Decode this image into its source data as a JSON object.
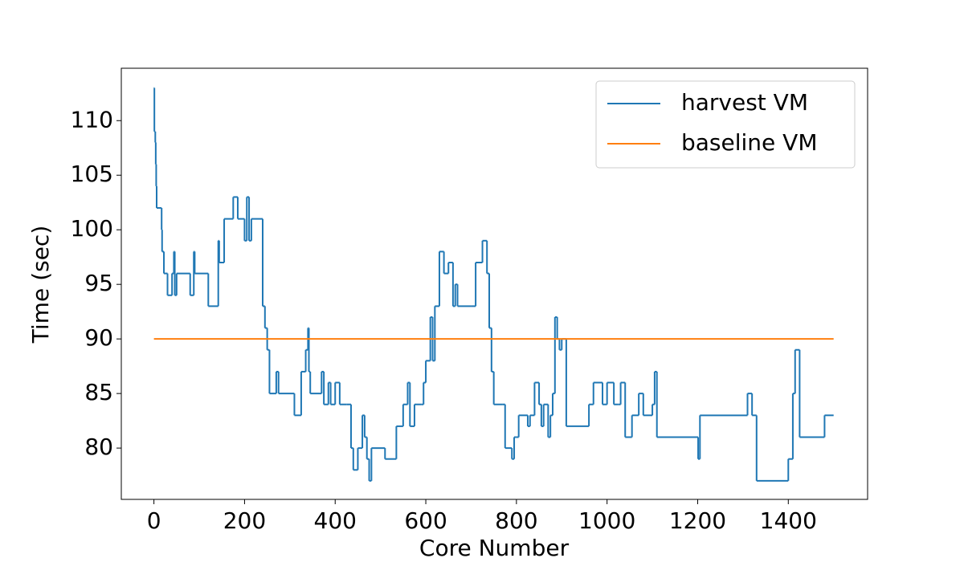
{
  "chart_data": {
    "type": "step",
    "xlabel": "Core Number",
    "ylabel": "Time (sec)",
    "xlim": [
      -72,
      1575
    ],
    "ylim": [
      75.3,
      114.8
    ],
    "xticks": [
      0,
      200,
      400,
      600,
      800,
      1000,
      1200,
      1400
    ],
    "yticks": [
      80,
      85,
      90,
      95,
      100,
      105,
      110
    ],
    "legend": "upper right",
    "grid": false,
    "series": [
      {
        "name": "harvest VM",
        "color": "#1f77b4",
        "x": [
          0,
          1,
          3,
          4,
          5,
          6,
          15,
          17,
          18,
          22,
          30,
          40,
          44,
          46,
          50,
          80,
          88,
          90,
          120,
          142,
          144,
          155,
          175,
          185,
          200,
          205,
          210,
          215,
          240,
          245,
          250,
          255,
          270,
          275,
          310,
          325,
          335,
          340,
          342,
          345,
          365,
          370,
          375,
          385,
          390,
          400,
          410,
          425,
          435,
          440,
          450,
          460,
          465,
          470,
          475,
          480,
          510,
          535,
          550,
          560,
          565,
          575,
          590,
          595,
          600,
          610,
          615,
          620,
          630,
          640,
          650,
          660,
          665,
          670,
          700,
          710,
          725,
          735,
          740,
          745,
          750,
          770,
          775,
          790,
          795,
          800,
          805,
          825,
          830,
          840,
          850,
          855,
          860,
          870,
          875,
          880,
          885,
          890,
          895,
          900,
          910,
          960,
          970,
          990,
          1000,
          1015,
          1025,
          1030,
          1040,
          1055,
          1070,
          1080,
          1100,
          1105,
          1110,
          1130,
          1200,
          1201,
          1205,
          1310,
          1320,
          1330,
          1400,
          1410,
          1415,
          1425,
          1480,
          1500
        ],
        "values": [
          113,
          109,
          108,
          106,
          104,
          102,
          102,
          100,
          98,
          96,
          94,
          96,
          98,
          94,
          96,
          94,
          98,
          96,
          93,
          99,
          97,
          101,
          103,
          101,
          99,
          103,
          99,
          101,
          93,
          91,
          89,
          85,
          87,
          85,
          83,
          87,
          89,
          91,
          87,
          85,
          85,
          87,
          84,
          86,
          84,
          86,
          84,
          84,
          80,
          78,
          80,
          83,
          81,
          79,
          77,
          80,
          79,
          82,
          84,
          86,
          82,
          84,
          84,
          86,
          88,
          92,
          88,
          93,
          98,
          96,
          97,
          93,
          95,
          93,
          93,
          97,
          99,
          96,
          91,
          87,
          84,
          84,
          80,
          79,
          81,
          81,
          83,
          82,
          83,
          86,
          84,
          82,
          84,
          81,
          83,
          85,
          92,
          90,
          89,
          90,
          82,
          84,
          86,
          84,
          86,
          84,
          84,
          86,
          81,
          83,
          85,
          83,
          84,
          87,
          81,
          81,
          81,
          79,
          83,
          85,
          83,
          77,
          79,
          85,
          89,
          81,
          83,
          83
        ]
      },
      {
        "name": "baseline VM",
        "color": "#ff7f0e",
        "x": [
          0,
          1500
        ],
        "values": [
          90,
          90
        ]
      }
    ]
  }
}
